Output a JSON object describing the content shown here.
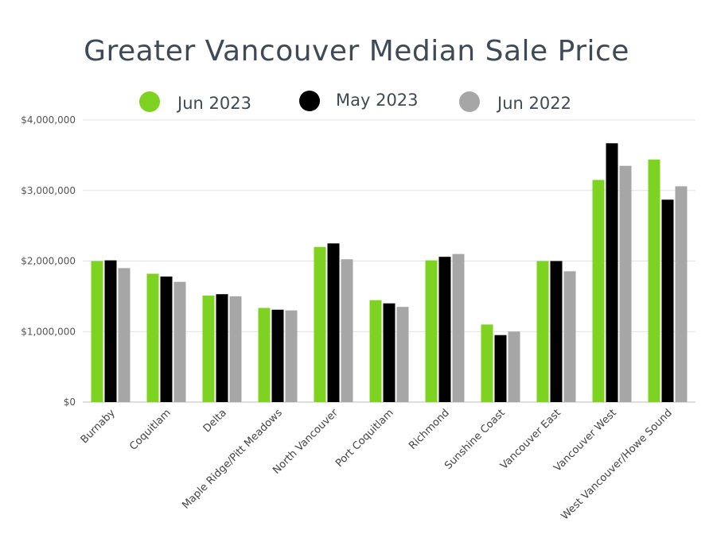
{
  "chart_data": {
    "type": "bar",
    "title": "Greater Vancouver Median Sale Price",
    "categories": [
      "Burnaby",
      "Coquitlam",
      "Delta",
      "Maple Ridge/Pitt Meadows",
      "North Vancouver",
      "Port Coquitlam",
      "Richmond",
      "Sunshine Coast",
      "Vancouver East",
      "Vancouver West",
      "West Vancouver/Howe Sound"
    ],
    "series": [
      {
        "name": "Jun 2023",
        "color": "#7ed321",
        "values": [
          2000000,
          1820000,
          1510000,
          1335000,
          2200000,
          1445000,
          2010000,
          1100000,
          2000000,
          3150000,
          3440000
        ]
      },
      {
        "name": "May 2023",
        "color": "#000000",
        "values": [
          2010000,
          1780000,
          1530000,
          1310000,
          2250000,
          1400000,
          2060000,
          950000,
          2000000,
          3670000,
          2870000
        ]
      },
      {
        "name": "Jun 2022",
        "color": "#a6a6a6",
        "values": [
          1900000,
          1705000,
          1500000,
          1300000,
          2025000,
          1350000,
          2100000,
          1000000,
          1855000,
          3350000,
          3060000
        ]
      }
    ],
    "ylim": [
      0,
      4000000
    ],
    "yticks": [
      0,
      1000000,
      2000000,
      3000000,
      4000000
    ],
    "ytick_labels": [
      "$0",
      "$1,000,000",
      "$2,000,000",
      "$3,000,000",
      "$4,000,000"
    ],
    "grid": true,
    "legend_position": "top"
  }
}
